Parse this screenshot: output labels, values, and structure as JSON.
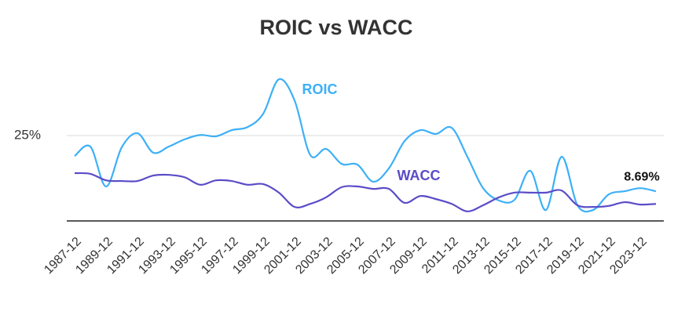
{
  "chart_data": {
    "type": "line",
    "title": "ROIC vs WACC",
    "categories": [
      "1987-12",
      null,
      "1989-12",
      null,
      "1991-12",
      null,
      "1993-12",
      null,
      "1995-12",
      null,
      "1997-12",
      null,
      "1999-12",
      null,
      "2001-12",
      null,
      "2003-12",
      null,
      "2005-12",
      null,
      "2007-12",
      null,
      "2009-12",
      null,
      "2011-12",
      null,
      "2013-12",
      null,
      "2015-12",
      null,
      "2017-12",
      null,
      "2019-12",
      null,
      "2021-12",
      null,
      "2023-12",
      null
    ],
    "series": [
      {
        "name": "ROIC",
        "color": "#3db0f7",
        "values": [
          19.0,
          21.8,
          10.1,
          21.6,
          25.7,
          20.0,
          21.8,
          23.9,
          25.2,
          24.8,
          26.6,
          27.5,
          31.4,
          41.5,
          35.3,
          19.3,
          21.1,
          16.7,
          16.5,
          11.5,
          15.4,
          23.4,
          26.6,
          25.5,
          27.3,
          18.8,
          9.6,
          6.0,
          6.2,
          14.7,
          3.2,
          18.8,
          4.6,
          3.2,
          7.8,
          8.7,
          9.6,
          8.69
        ],
        "value_labels": [
          null,
          null,
          null,
          null,
          null,
          null,
          null,
          null,
          null,
          null,
          null,
          null,
          null,
          null,
          null,
          null,
          null,
          null,
          null,
          null,
          null,
          null,
          null,
          null,
          null,
          null,
          null,
          null,
          null,
          null,
          null,
          null,
          null,
          null,
          null,
          null,
          null,
          "8.69%"
        ]
      },
      {
        "name": "WACC",
        "color": "#5a4cc8",
        "values": [
          14.0,
          13.8,
          11.9,
          11.7,
          11.7,
          13.3,
          13.5,
          12.8,
          10.6,
          11.9,
          11.7,
          10.6,
          10.8,
          8.3,
          4.1,
          5.0,
          6.9,
          9.9,
          10.1,
          9.4,
          9.4,
          5.3,
          7.3,
          6.4,
          5.0,
          2.8,
          4.6,
          6.9,
          8.3,
          8.3,
          8.3,
          8.9,
          4.6,
          4.1,
          4.4,
          5.5,
          4.8,
          5.0
        ]
      }
    ],
    "ylim": [
      0,
      45
    ],
    "yticks": [
      {
        "value": 25,
        "label": "25%"
      }
    ],
    "grid": true
  }
}
